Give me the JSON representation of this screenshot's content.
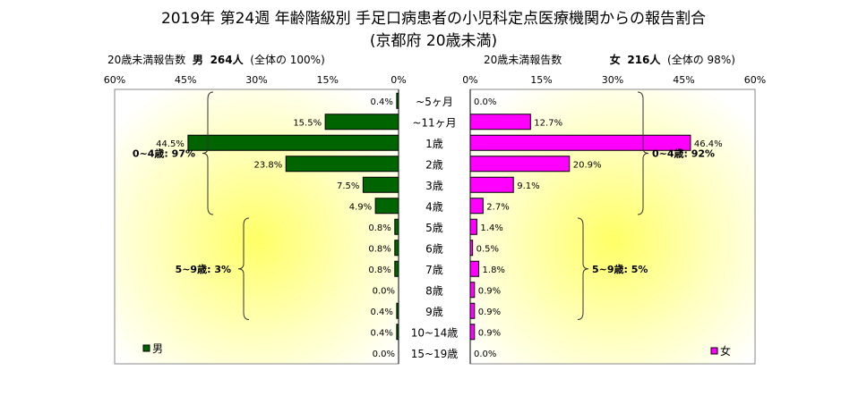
{
  "title": "2019年 第24週 年齢階級別 手足口病患者の小児科定点医療機関からの報告割合",
  "subtitle": "(京都府 20歳未満)",
  "left_header": {
    "prefix": "20歳未満報告数",
    "sex": "男",
    "count": "264人",
    "share": "(全体の 100%)"
  },
  "right_header": {
    "prefix": "20歳未満報告数",
    "sex": "女",
    "count": "216人",
    "share": "(全体の 98%)"
  },
  "colors": {
    "male": "#006400",
    "female": "#FF00FF"
  },
  "chart_data": {
    "type": "bar",
    "orientation": "horizontal",
    "layout": "population-pyramid",
    "categories": [
      "~5ヶ月",
      "~11ヶ月",
      "1歳",
      "2歳",
      "3歳",
      "4歳",
      "5歳",
      "6歳",
      "7歳",
      "8歳",
      "9歳",
      "10~14歳",
      "15~19歳"
    ],
    "xlim": [
      0,
      60
    ],
    "ticks": [
      "0%",
      "15%",
      "30%",
      "45%",
      "60%"
    ],
    "tick_values": [
      0,
      15,
      30,
      45,
      60
    ],
    "series": [
      {
        "name": "男",
        "side": "left",
        "values": [
          0.4,
          15.5,
          44.5,
          23.8,
          7.5,
          4.9,
          0.8,
          0.8,
          0.8,
          0.0,
          0.4,
          0.4,
          0.0
        ],
        "labels": [
          "0.4%",
          "15.5%",
          "44.5%",
          "23.8%",
          "7.5%",
          "4.9%",
          "0.8%",
          "0.8%",
          "0.8%",
          "0.0%",
          "0.4%",
          "0.4%",
          "0.0%"
        ],
        "groups": [
          {
            "label": "0~4歳: 97%",
            "from": 0,
            "to": 5
          },
          {
            "label": "5~9歳: 3%",
            "from": 6,
            "to": 10
          }
        ]
      },
      {
        "name": "女",
        "side": "right",
        "values": [
          0.0,
          12.7,
          46.4,
          20.9,
          9.1,
          2.7,
          1.4,
          0.5,
          1.8,
          0.9,
          0.9,
          0.9,
          0.0
        ],
        "labels": [
          "0.0%",
          "12.7%",
          "46.4%",
          "20.9%",
          "9.1%",
          "2.7%",
          "1.4%",
          "0.5%",
          "1.8%",
          "0.9%",
          "0.9%",
          "0.9%",
          "0.0%"
        ],
        "groups": [
          {
            "label": "0~4歳: 92%",
            "from": 0,
            "to": 5
          },
          {
            "label": "5~9歳: 5%",
            "from": 6,
            "to": 10
          }
        ]
      }
    ],
    "grid": false,
    "background": "yellow radial gradient",
    "legend_position": "bottom-left / bottom-right"
  }
}
